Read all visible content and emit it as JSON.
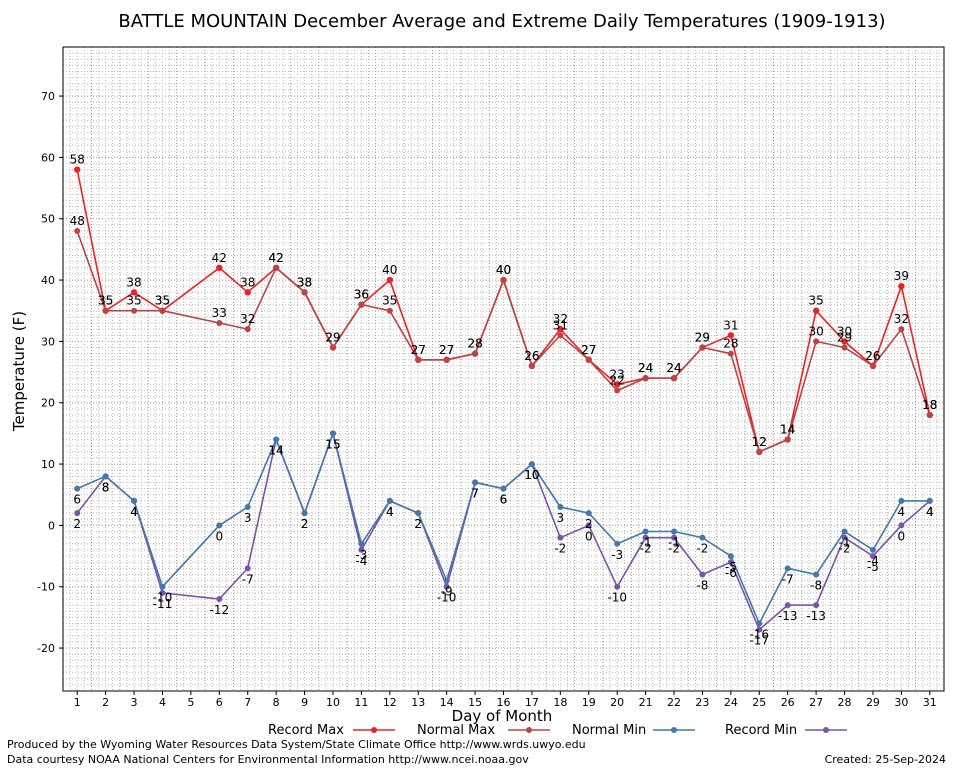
{
  "chart_data": {
    "type": "line",
    "title": "BATTLE MOUNTAIN December Average and Extreme Daily Temperatures (1909-1913)",
    "xlabel": "Day of Month",
    "ylabel": "Temperature (F)",
    "x": [
      1,
      2,
      3,
      4,
      5,
      6,
      7,
      8,
      9,
      10,
      11,
      12,
      13,
      14,
      15,
      16,
      17,
      18,
      19,
      20,
      21,
      22,
      23,
      24,
      25,
      26,
      27,
      28,
      29,
      30,
      31
    ],
    "xlim": [
      0.5,
      31.5
    ],
    "ylim": [
      -27,
      78
    ],
    "yticks": [
      -20,
      -10,
      0,
      10,
      20,
      30,
      40,
      50,
      60,
      70
    ],
    "grid": true,
    "legend_position": "bottom",
    "series": [
      {
        "name": "Record Max",
        "color": "#ee2222",
        "values": [
          58,
          35,
          38,
          35,
          null,
          42,
          38,
          42,
          38,
          29,
          36,
          40,
          27,
          27,
          28,
          40,
          26,
          32,
          27,
          23,
          24,
          24,
          29,
          31,
          12,
          14,
          35,
          30,
          26,
          39,
          18
        ],
        "labels": [
          "58",
          "35",
          "38",
          "35",
          "",
          "42",
          "38",
          "42",
          "38",
          "29",
          "36",
          "40",
          "27",
          "27",
          "28",
          "40",
          "26",
          "32",
          "27",
          "23",
          "24",
          "24",
          "29",
          "31",
          "12",
          "14",
          "35",
          "30",
          "26",
          "39",
          "18"
        ]
      },
      {
        "name": "Normal Max",
        "color": "#bb4444",
        "values": [
          48,
          35,
          35,
          35,
          null,
          33,
          32,
          42,
          38,
          29,
          36,
          35,
          27,
          27,
          28,
          40,
          26,
          31,
          27,
          22,
          24,
          24,
          29,
          28,
          12,
          14,
          30,
          29,
          26,
          32,
          18
        ],
        "labels": [
          "48",
          "35",
          "35",
          "35",
          "",
          "33",
          "32",
          "42",
          "38",
          "29",
          "36",
          "35",
          "27",
          "27",
          "28",
          "40",
          "26",
          "31",
          "27",
          "22",
          "24",
          "24",
          "29",
          "28",
          "12",
          "14",
          "30",
          "29",
          "26",
          "32",
          "18"
        ]
      },
      {
        "name": "Normal Min",
        "color": "#4477aa",
        "values": [
          6,
          8,
          4,
          -10,
          null,
          0,
          3,
          14,
          2,
          15,
          -3,
          4,
          2,
          -9,
          7,
          6,
          10,
          3,
          2,
          -3,
          -1,
          -1,
          -2,
          -5,
          -16,
          -7,
          -8,
          -1,
          -4,
          4,
          4
        ],
        "labels": [
          "6",
          "8",
          "4",
          "-10",
          "",
          "0",
          "3",
          "14",
          "2",
          "15",
          "-3",
          "4",
          "2",
          "-9",
          "7",
          "6",
          "10",
          "3",
          "2",
          "-3",
          "-1",
          "-1",
          "-2",
          "-5",
          "-16",
          "-7",
          "-8",
          "-1",
          "-4",
          "4",
          "4"
        ]
      },
      {
        "name": "Record Min",
        "color": "#7755aa",
        "values": [
          2,
          8,
          4,
          -11,
          null,
          -12,
          -7,
          14,
          2,
          15,
          -4,
          4,
          2,
          -10,
          7,
          6,
          10,
          -2,
          0,
          -10,
          -2,
          -2,
          -8,
          -6,
          -17,
          -13,
          -13,
          -2,
          -5,
          0,
          4
        ],
        "labels": [
          "2",
          "8",
          "4",
          "-11",
          "",
          "-12",
          "-7",
          "14",
          "2",
          "15",
          "-4",
          "4",
          "2",
          "-10",
          "7",
          "6",
          "10",
          "-2",
          "0",
          "-10",
          "-2",
          "-2",
          "-8",
          "-6",
          "-17",
          "-13",
          "-13",
          "-2",
          "-5",
          "0",
          "4"
        ]
      }
    ]
  },
  "footer": {
    "line1": "Produced by the Wyoming Water Resources Data System/State Climate Office http://www.wrds.uwyo.edu",
    "line2": "Data courtesy NOAA National Centers for Environmental Information http://www.ncei.noaa.gov",
    "created": "Created:  25-Sep-2024"
  }
}
